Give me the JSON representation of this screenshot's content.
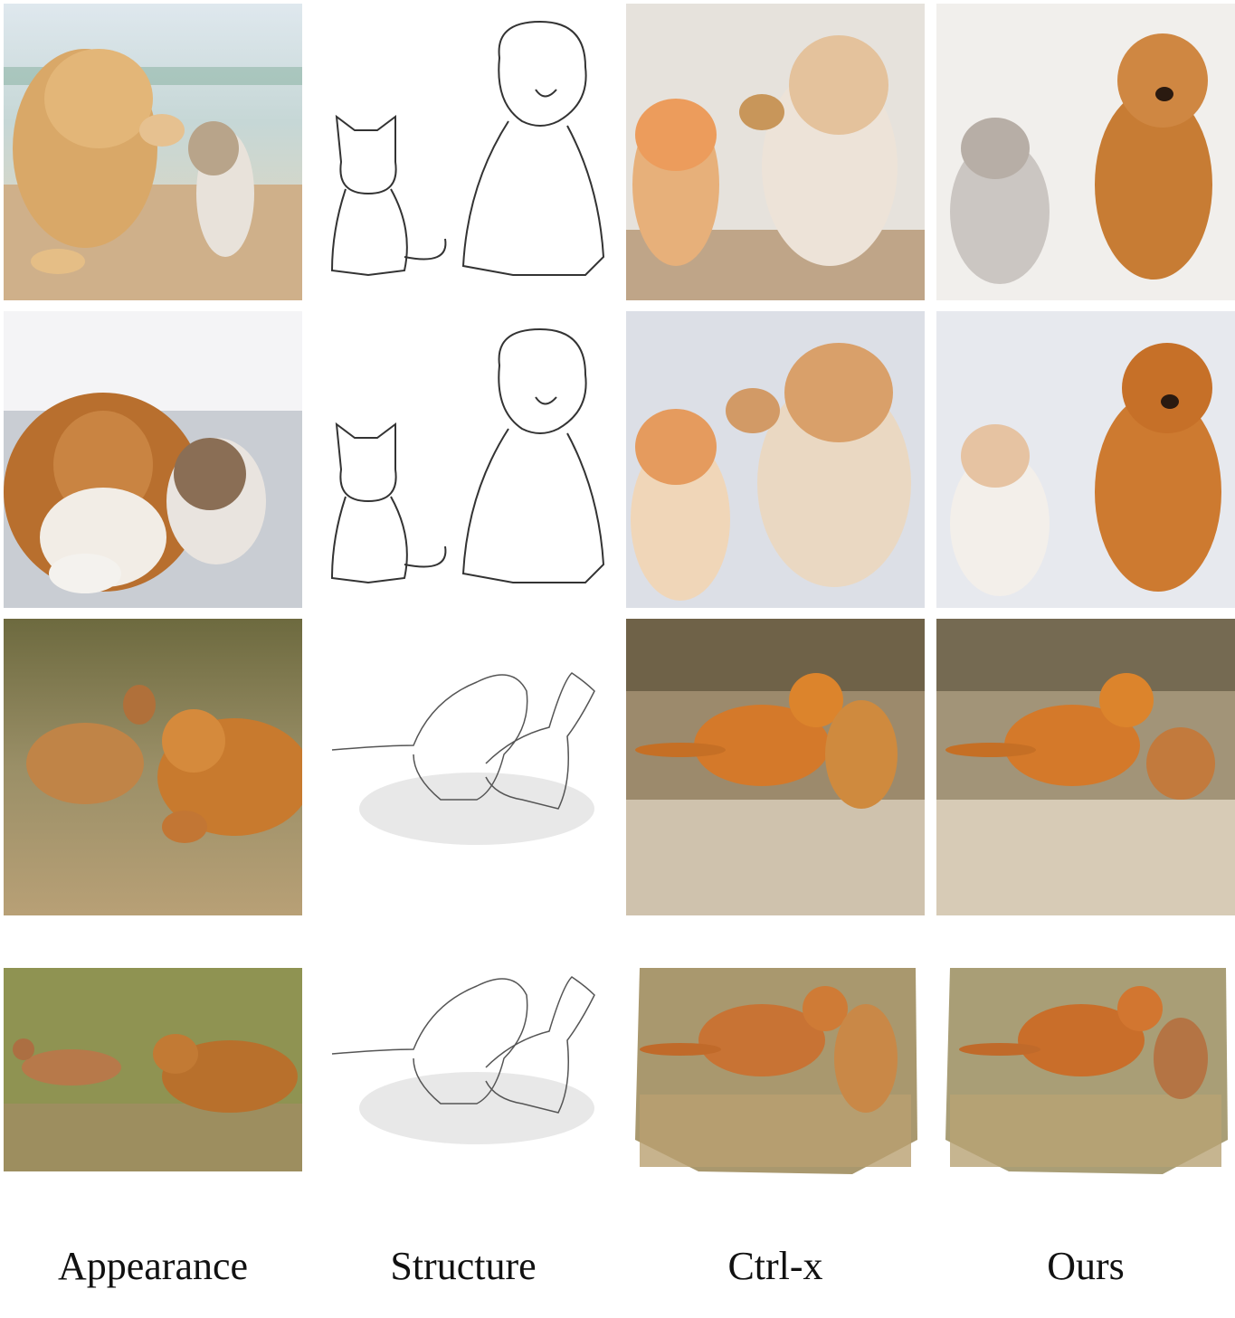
{
  "figure": {
    "columns": [
      {
        "id": "appearance",
        "label": "Appearance"
      },
      {
        "id": "structure",
        "label": "Structure"
      },
      {
        "id": "ctrlx",
        "label": "Ctrl-x"
      },
      {
        "id": "ours",
        "label": "Ours"
      }
    ],
    "rows": [
      {
        "appearance": "puppy and kitten on beach",
        "structure": "line sketch of kitten and puppy",
        "ctrlx": "kitten and puppy",
        "ours": "kitten and puppy"
      },
      {
        "appearance": "dog and cat on sofa",
        "structure": "line sketch of kitten and puppy",
        "ctrlx": "kitten and puppy",
        "ours": "kitten and puppy"
      },
      {
        "appearance": "deer and tiger painting",
        "structure": "pencil sketch of tiger and deer",
        "ctrlx": "tiger and deer",
        "ours": "tiger and deer"
      },
      {
        "appearance": "deer and tiger on grass",
        "structure": "pencil sketch of tiger and deer",
        "ctrlx": "tiger and deer",
        "ours": "tiger and deer"
      }
    ]
  }
}
